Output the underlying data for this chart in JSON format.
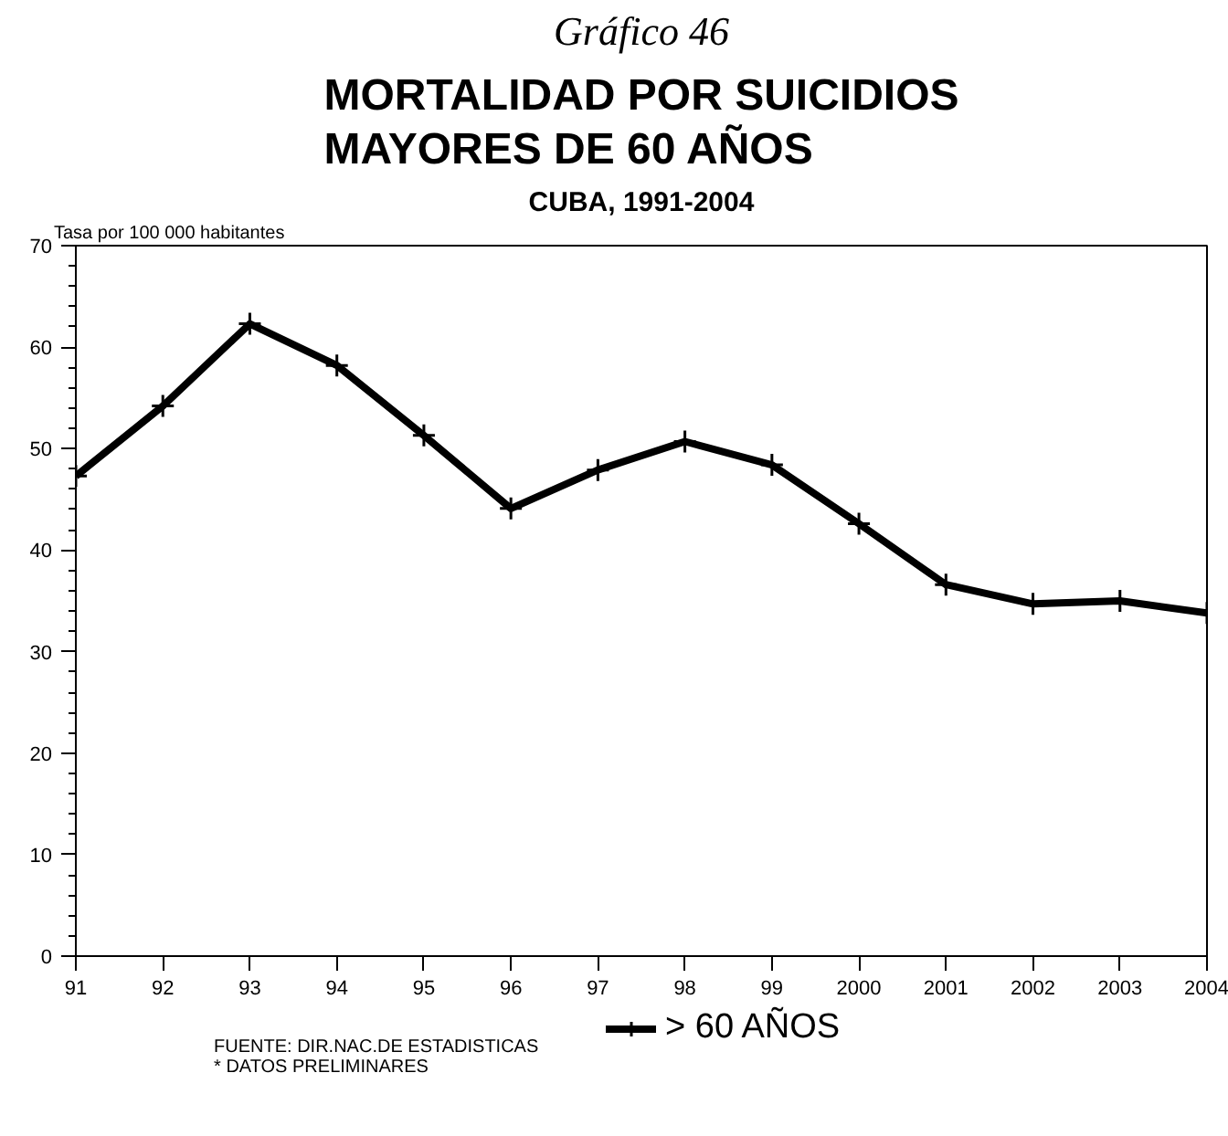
{
  "chart_data": {
    "type": "line",
    "title": "MORTALIDAD POR SUICIDIOS\nMAYORES DE 60 AÑOS",
    "subtitle": "CUBA, 1991-2004",
    "ylabel": "Tasa por 100 000 habitantes",
    "annotations": [
      "Gráfico 46",
      "FUENTE: DIR.NAC.DE ESTADISTICAS",
      "* DATOS PRELIMINARES"
    ],
    "categories": [
      "91",
      "92",
      "93",
      "94",
      "95",
      "96",
      "97",
      "98",
      "99",
      "2000",
      "2001",
      "2002",
      "2003",
      "2004"
    ],
    "series": [
      {
        "name": "> 60 AÑOS",
        "color": "#000000",
        "values": [
          47.3,
          54.2,
          62.3,
          58.2,
          51.3,
          44.1,
          47.9,
          50.7,
          48.4,
          42.6,
          36.6,
          34.7,
          35.0,
          33.8
        ]
      }
    ],
    "ylim": [
      0,
      70
    ],
    "yticks": [
      0,
      10,
      20,
      30,
      40,
      50,
      60,
      70
    ],
    "grid": false,
    "legend": "bottom",
    "marker": "cross",
    "line_style": "solid"
  }
}
